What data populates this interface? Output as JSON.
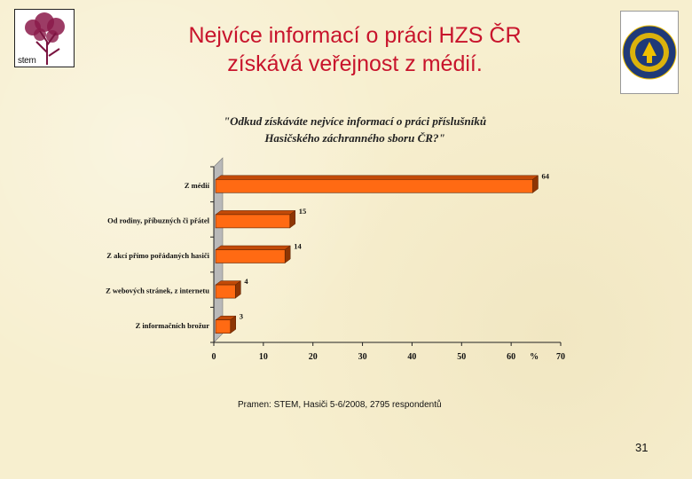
{
  "slide": {
    "title_line1": "Nejvíce informací o práci HZS ČR",
    "title_line2": "získává veřejnost z médií.",
    "source": "Pramen: STEM, Hasiči 5-6/2008, 2795 respondentů",
    "page_number": "31"
  },
  "logos": {
    "left_text": "stem"
  },
  "colors": {
    "title": "#c8142c",
    "bar_front": "#ff6a13",
    "bar_top": "#c24a08",
    "bar_side": "#8e3504",
    "wall": "#b9b9b9"
  },
  "chart_data": {
    "type": "bar",
    "orientation": "horizontal",
    "title_line1": "\"Odkud získáváte nejvíce informací o práci příslušníků",
    "title_line2": "Hasičského záchranného sboru ČR?\"",
    "categories": [
      "Z médií",
      "Od rodiny, příbuzných či přátel",
      "Z akcí přímo pořádaných hasiči",
      "Z webových stránek, z internetu",
      "Z informačních brožur"
    ],
    "values": [
      64,
      15,
      14,
      4,
      3
    ],
    "value_labels": [
      "64",
      "15",
      "14",
      "4",
      "3"
    ],
    "xlim": [
      0,
      70
    ],
    "x_ticks": [
      0,
      10,
      20,
      30,
      40,
      50,
      60,
      70
    ],
    "x_tick_labels": [
      "0",
      "10",
      "20",
      "30",
      "40",
      "50",
      "60",
      "70"
    ],
    "x_unit": "%",
    "grid": false
  }
}
